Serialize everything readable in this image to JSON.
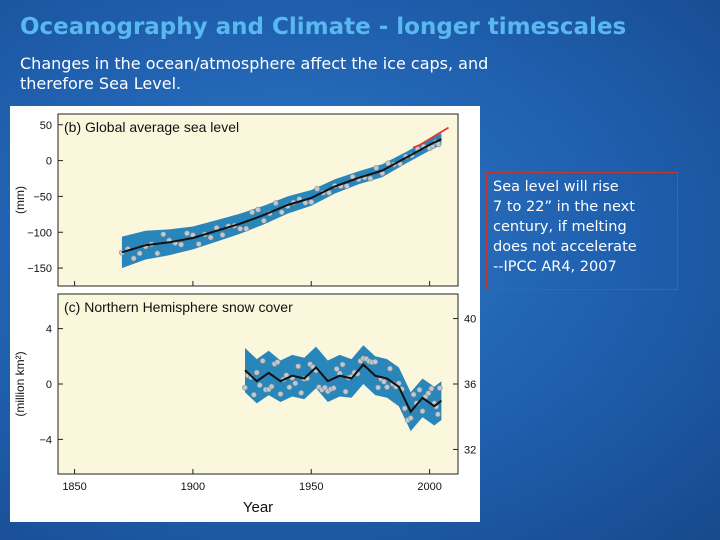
{
  "slide": {
    "title": "Oceanography and Climate  - longer timescales",
    "subtitle_line1": "Changes in the ocean/atmosphere affect the ice caps, and",
    "subtitle_line2": "therefore Sea Level.",
    "callout_lines": [
      "Sea level will rise",
      "7 to 22” in the next",
      "century, if melting",
      "does not accelerate",
      "--IPCC AR4, 2007"
    ]
  },
  "colors": {
    "band": "#1e7fb8",
    "line": "#111111",
    "dots": "#bfc9cf",
    "satellite": "#e03a2f",
    "panel_bg": "#fbf7dc"
  },
  "chart_data": [
    {
      "type": "line",
      "title": "(b) Global average sea level",
      "ylabel": "(mm)",
      "xlabel": "Year",
      "xlim": [
        1843,
        2012
      ],
      "ylim": [
        -175,
        65
      ],
      "x_ticks": [
        1850,
        1900,
        1950,
        2000
      ],
      "y_ticks": [
        50,
        0,
        -50,
        -100,
        -150
      ],
      "series": [
        {
          "x": [
            1870,
            1880,
            1890,
            1900,
            1910,
            1920,
            1930,
            1940,
            1950,
            1960,
            1970,
            1980,
            1990,
            2000,
            2005
          ],
          "values": [
            -128,
            -118,
            -114,
            -108,
            -98,
            -88,
            -76,
            -62,
            -52,
            -36,
            -24,
            -14,
            4,
            22,
            30
          ]
        },
        {
          "x": [
            1993,
            1996,
            1999,
            2002,
            2005,
            2008
          ],
          "values": [
            18,
            22,
            28,
            34,
            40,
            46
          ]
        }
      ],
      "band_halfwidth": [
        22,
        20,
        18,
        16,
        15,
        14,
        13,
        12,
        11,
        10,
        9,
        9,
        8,
        8,
        8
      ]
    },
    {
      "type": "line",
      "title": "(c) Northern Hemisphere snow cover",
      "ylabel": "(million km²)",
      "xlabel": "Year",
      "xlim": [
        1843,
        2012
      ],
      "ylim": [
        -6.5,
        6.5
      ],
      "y_ticks": [
        4,
        0,
        -4
      ],
      "y2_ticks": [
        40,
        36,
        32
      ],
      "series": [
        {
          "x": [
            1922,
            1927,
            1932,
            1937,
            1942,
            1947,
            1952,
            1957,
            1962,
            1967,
            1972,
            1977,
            1982,
            1987,
            1992,
            1997,
            2002,
            2005
          ],
          "values": [
            1.0,
            0.2,
            0.8,
            0.2,
            0.6,
            0.4,
            1.2,
            0.2,
            0.6,
            0.4,
            1.4,
            0.6,
            0.4,
            -0.2,
            -2.0,
            -1.0,
            -1.6,
            -1.2
          ]
        }
      ],
      "band_halfwidth": [
        1.6,
        1.6,
        1.6,
        1.5,
        1.5,
        1.5,
        1.5,
        1.5,
        1.5,
        1.4,
        1.4,
        1.4,
        1.4,
        1.4,
        1.4,
        1.4,
        1.4,
        1.4
      ]
    }
  ]
}
